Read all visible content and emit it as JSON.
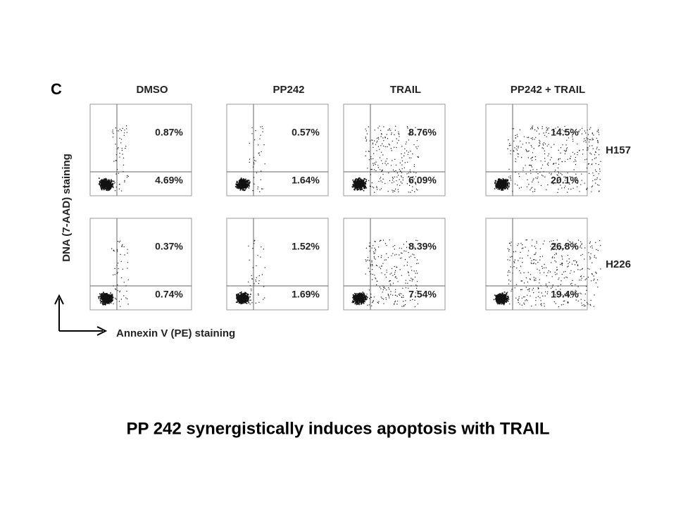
{
  "panel_label": "C",
  "columns": [
    "DMSO",
    "PP242",
    "TRAIL",
    "PP242 + TRAIL"
  ],
  "rows": [
    {
      "label": "H157",
      "plots": [
        {
          "upper": "0.87%",
          "lower": "4.69%"
        },
        {
          "upper": "0.57%",
          "lower": "1.64%"
        },
        {
          "upper": "8.76%",
          "lower": "6.09%"
        },
        {
          "upper": "14.5%",
          "lower": "20.1%"
        }
      ]
    },
    {
      "label": "H226",
      "plots": [
        {
          "upper": "0.37%",
          "lower": "0.74%"
        },
        {
          "upper": "1.52%",
          "lower": "1.69%"
        },
        {
          "upper": "8.39%",
          "lower": "7.54%"
        },
        {
          "upper": "26.8%",
          "lower": "19.4%"
        }
      ]
    }
  ],
  "y_axis_label": "DNA (7-AAD) staining",
  "x_axis_label": "Annexin V (PE) staining",
  "caption": "PP 242 synergistically induces apoptosis with TRAIL"
}
